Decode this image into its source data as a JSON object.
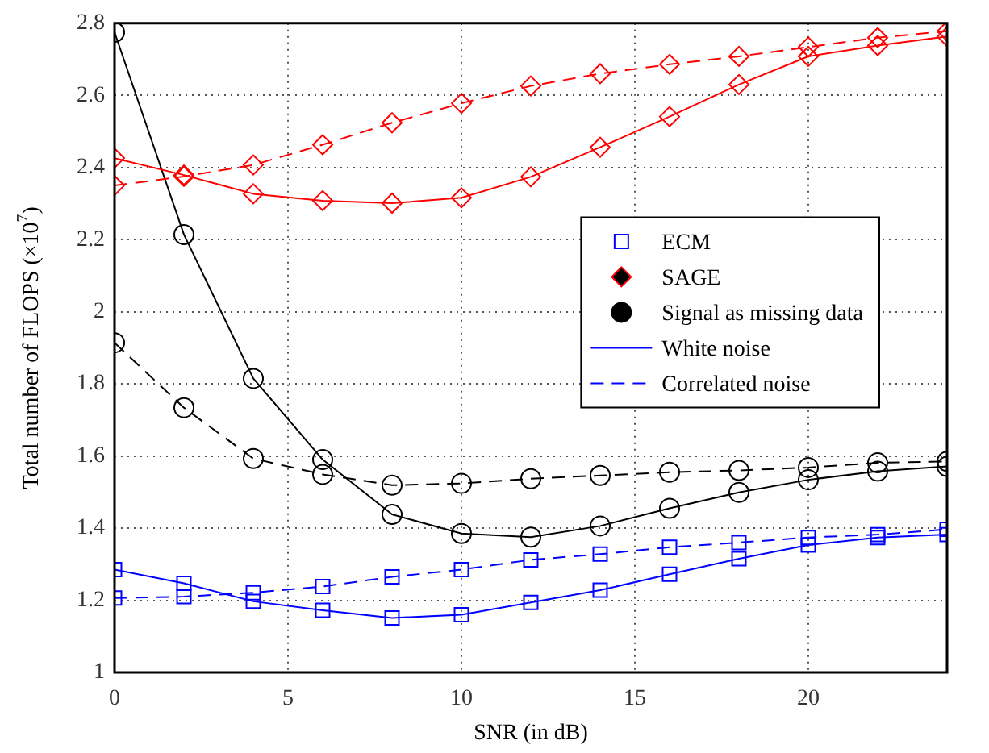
{
  "chart_data": {
    "type": "line",
    "xlabel": "SNR (in dB)",
    "ylabel": "Total number of FLOPS (×10$^{7}$)",
    "x": [
      0,
      2,
      4,
      6,
      8,
      10,
      12,
      14,
      16,
      18,
      20,
      22,
      24
    ],
    "xlim": [
      0,
      24
    ],
    "xticks": [
      0,
      5,
      10,
      15,
      20
    ],
    "ylim": [
      1,
      2.8
    ],
    "yticks": [
      1,
      1.2,
      1.4,
      1.6,
      1.8,
      2,
      2.2,
      2.4,
      2.6,
      2.8
    ],
    "grid": true,
    "legend": "center right",
    "series": [
      {
        "color": "#0000ff",
        "marker": "square",
        "line_style": "solid",
        "values": [
          1.285,
          1.247,
          1.197,
          1.172,
          1.151,
          1.16,
          1.194,
          1.228,
          1.272,
          1.315,
          1.353,
          1.374,
          1.382
        ]
      },
      {
        "color": "#0000ff",
        "marker": "square",
        "line_style": "dashed",
        "values": [
          1.206,
          1.21,
          1.221,
          1.238,
          1.265,
          1.285,
          1.312,
          1.328,
          1.347,
          1.36,
          1.374,
          1.382,
          1.397
        ]
      },
      {
        "color": "#ff0000",
        "marker": "diamond",
        "line_style": "solid",
        "values": [
          2.426,
          2.379,
          2.327,
          2.308,
          2.301,
          2.316,
          2.374,
          2.456,
          2.541,
          2.63,
          2.708,
          2.738,
          2.763
        ]
      },
      {
        "color": "#ff0000",
        "marker": "diamond",
        "line_style": "dashed",
        "values": [
          2.35,
          2.375,
          2.407,
          2.463,
          2.524,
          2.578,
          2.626,
          2.66,
          2.686,
          2.708,
          2.734,
          2.76,
          2.778
        ]
      },
      {
        "color": "#000000",
        "marker": "circle",
        "line_style": "solid",
        "values": [
          2.775,
          2.214,
          1.815,
          1.59,
          1.438,
          1.385,
          1.375,
          1.406,
          1.455,
          1.499,
          1.534,
          1.558,
          1.571
        ]
      },
      {
        "color": "#000000",
        "marker": "circle",
        "line_style": "dashed",
        "values": [
          1.914,
          1.734,
          1.593,
          1.549,
          1.519,
          1.524,
          1.537,
          1.546,
          1.555,
          1.56,
          1.568,
          1.581,
          1.585
        ]
      },
      {
        "name": "ECM",
        "color": "#0000ff",
        "marker": "square",
        "line_style": "none",
        "values": [
          null,
          null,
          null,
          null,
          null,
          null,
          null,
          null,
          null,
          null,
          null,
          null,
          null
        ]
      },
      {
        "name": "SAGE",
        "color": "#ff0000",
        "marker": "diamond",
        "line_style": "none",
        "values": [
          null,
          null,
          null,
          null,
          null,
          null,
          null,
          null,
          null,
          null,
          null,
          null,
          null
        ]
      },
      {
        "name": "Signal as missing data",
        "color": "#000000",
        "marker": "circle",
        "line_style": "none",
        "values": [
          null,
          null,
          null,
          null,
          null,
          null,
          null,
          null,
          null,
          null,
          null,
          null,
          null
        ]
      },
      {
        "name": "White noise",
        "color": "#0000ff",
        "marker": "none",
        "line_style": "solid",
        "values": [
          null,
          null,
          null,
          null,
          null,
          null,
          null,
          null,
          null,
          null,
          null,
          null,
          null
        ]
      },
      {
        "name": "Correlated noise",
        "color": "#0000ff",
        "marker": "none",
        "line_style": "dashed",
        "values": [
          null,
          null,
          null,
          null,
          null,
          null,
          null,
          null,
          null,
          null,
          null,
          null,
          null
        ]
      }
    ]
  }
}
